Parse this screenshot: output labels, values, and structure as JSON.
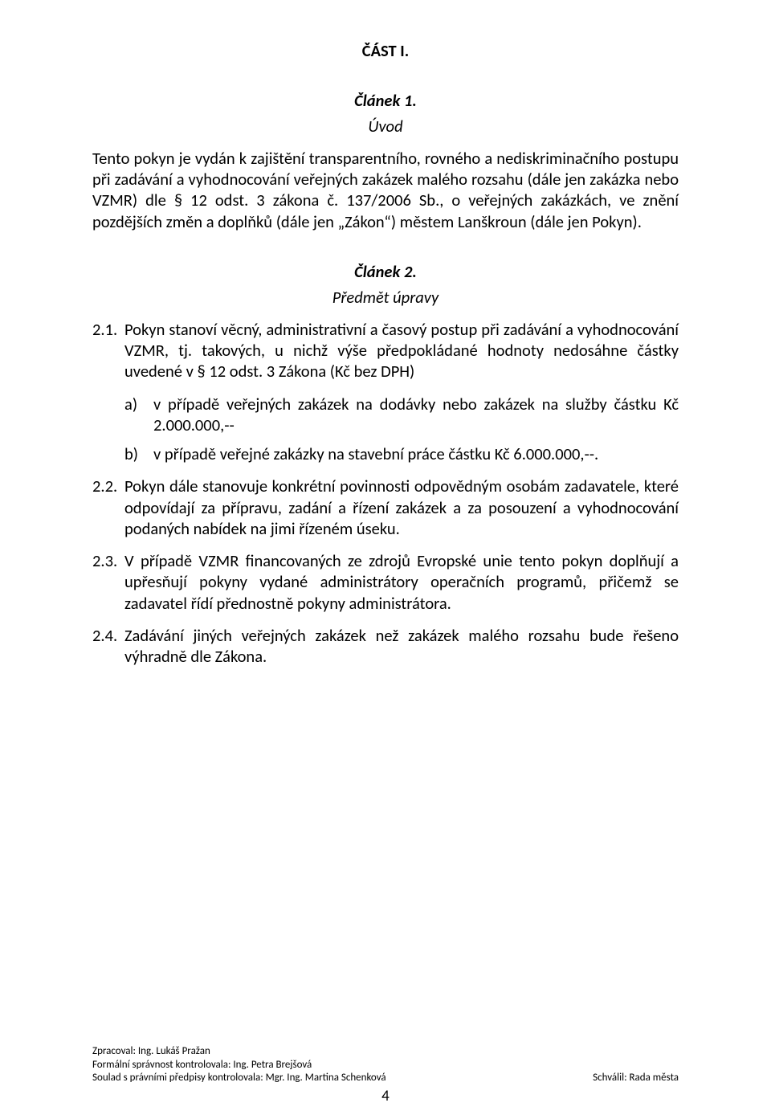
{
  "part_title": "ČÁST I.",
  "article1": {
    "title": "Článek 1.",
    "subtitle": "Úvod",
    "para": "Tento pokyn je vydán k zajištění transparentního, rovného a nediskriminačního postupu při zadávání a vyhodnocování veřejných zakázek malého rozsahu (dále jen zakázka nebo VZMR) dle § 12 odst. 3 zákona č. 137/2006 Sb., o veřejných zakázkách, ve znění pozdějších změn a doplňků (dále jen „Zákon“) městem Lanškroun (dále jen Pokyn)."
  },
  "article2": {
    "title": "Článek 2.",
    "subtitle": "Předmět úpravy",
    "items": [
      {
        "num": "2.1.",
        "text": "Pokyn stanoví věcný, administrativní a časový postup při zadávání a vyhodnocování VZMR, tj. takových, u nichž výše předpokládané hodnoty nedosáhne částky uvedené v § 12 odst. 3 Zákona (Kč bez DPH)",
        "sub": [
          {
            "marker": "a)",
            "text": "v případě veřejných zakázek na dodávky nebo zakázek na služby částku Kč 2.000.000,--"
          },
          {
            "marker": "b)",
            "text": "v případě veřejné zakázky na stavební práce částku Kč 6.000.000,--."
          }
        ]
      },
      {
        "num": "2.2.",
        "text": "Pokyn dále stanovuje konkrétní povinnosti odpovědným osobám zadavatele, které odpovídají za přípravu, zadání a řízení zakázek a za posouzení a vyhodnocování podaných nabídek na jimi řízeném úseku."
      },
      {
        "num": "2.3.",
        "text": "V případě VZMR financovaných ze zdrojů Evropské unie tento pokyn doplňují a upřesňují pokyny vydané administrátory operačních programů, přičemž se zadavatel řídí přednostně pokyny administrátora."
      },
      {
        "num": "2.4.",
        "text": "Zadávání jiných veřejných zakázek než zakázek malého rozsahu bude řešeno výhradně dle Zákona."
      }
    ]
  },
  "footer": {
    "line1": "Zpracoval: Ing. Lukáš Pražan",
    "line2": "Formální správnost kontrolovala: Ing. Petra Brejšová",
    "line3_left": "Soulad s právními předpisy kontrolovala: Mgr. Ing. Martina Schenková",
    "line3_right": "Schválil: Rada města"
  },
  "page_number": "4"
}
